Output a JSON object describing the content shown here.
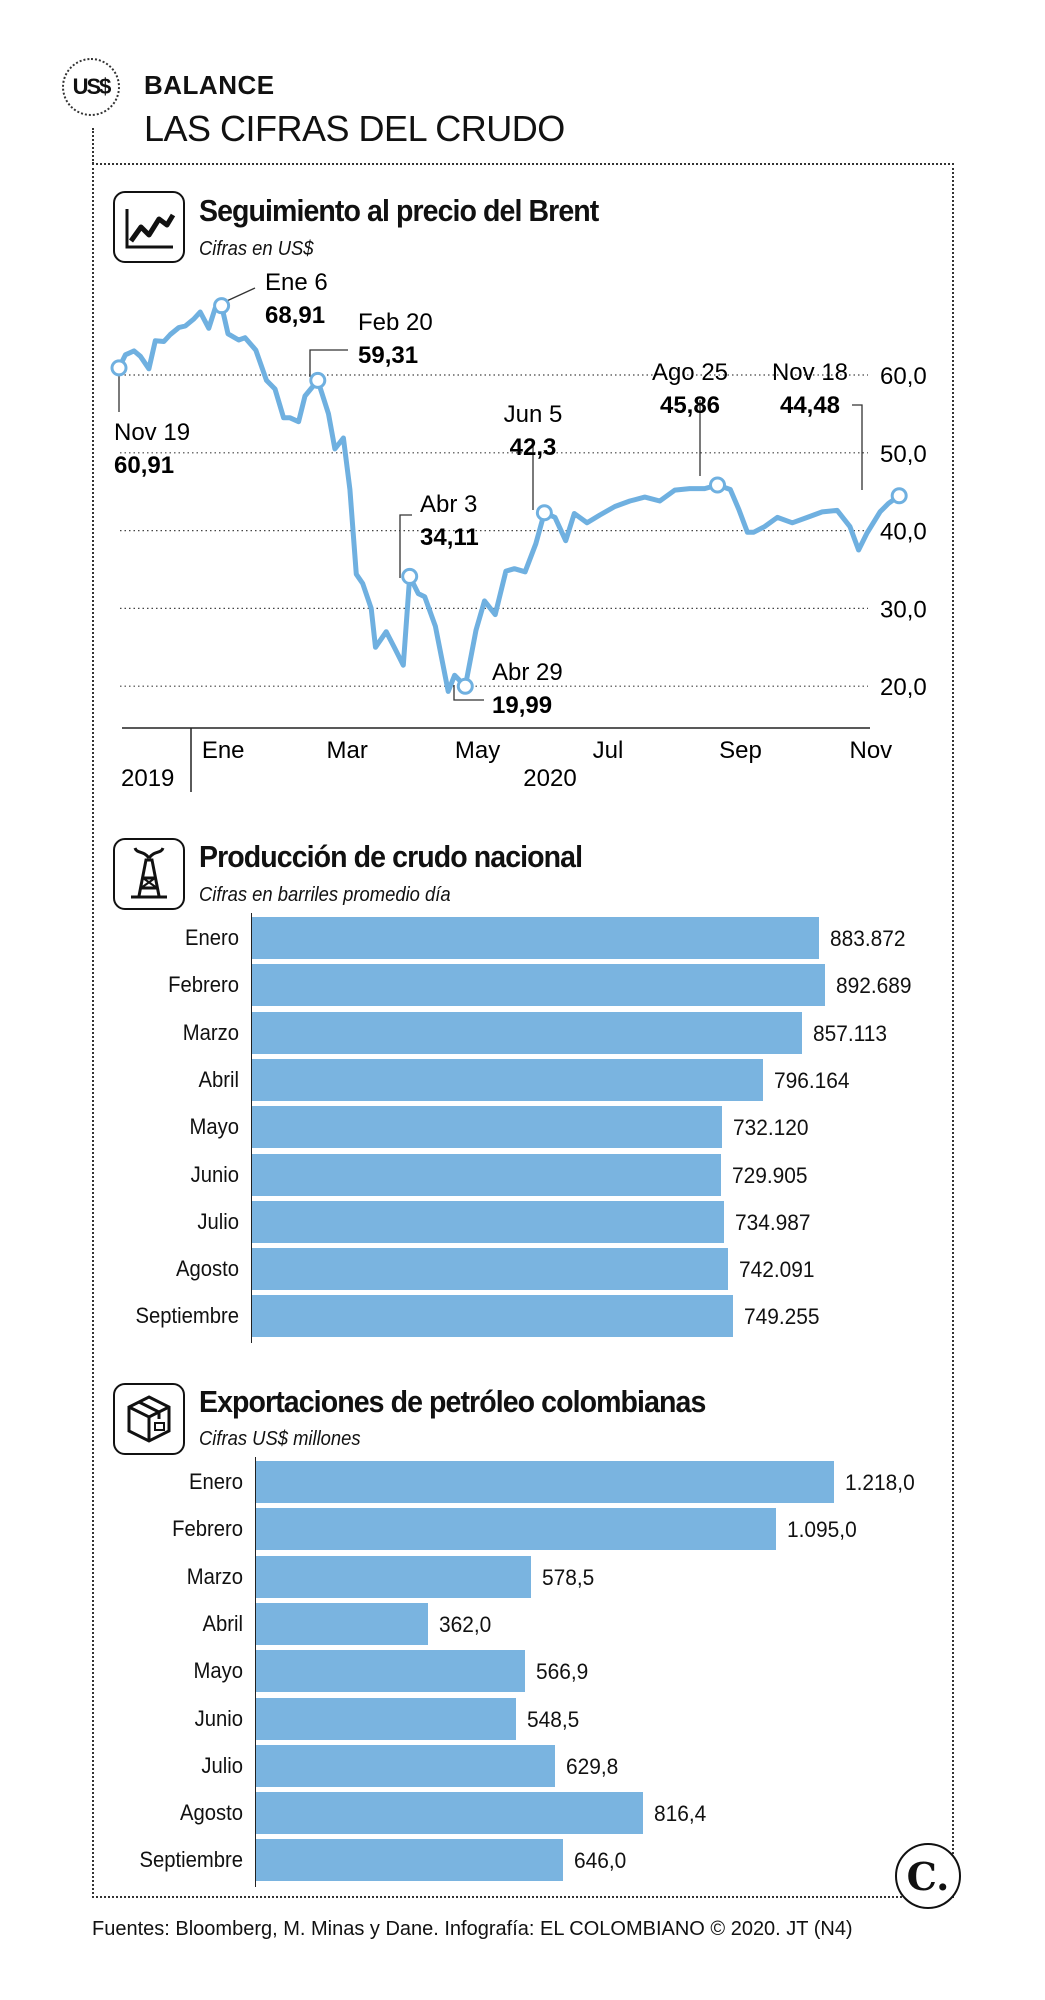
{
  "header": {
    "badge": "US$",
    "kicker": "BALANCE",
    "title": "LAS CIFRAS DEL CRUDO"
  },
  "icons": {
    "line_chart": "line-chart-icon",
    "oil_rig": "oil-derrick-icon",
    "export_box": "export-box-icon"
  },
  "colors": {
    "accent": "#7ab4e0",
    "line": "#6fb0e0"
  },
  "chart_data": [
    {
      "type": "line",
      "title": "Seguimiento al precio del Brent",
      "subtitle": "Cifras en US$",
      "y_ticks": [
        "60,0",
        "50,0",
        "40,0",
        "30,0",
        "20,0"
      ],
      "y_tick_values": [
        60,
        50,
        40,
        30,
        20
      ],
      "ylim": [
        17,
        72
      ],
      "x_ticks": [
        "Ene",
        "Mar",
        "May",
        "Jul",
        "Sep",
        "Nov"
      ],
      "x_years": [
        "2019",
        "2020"
      ],
      "grid": true,
      "series": [
        {
          "x": [
            "2019-11-19",
            "2019-11-22",
            "2019-11-26",
            "2019-11-29",
            "2019-12-03",
            "2019-12-06",
            "2019-12-10",
            "2019-12-13",
            "2019-12-17",
            "2019-12-20",
            "2019-12-24",
            "2019-12-27",
            "2019-12-31",
            "2020-01-03",
            "2020-01-06",
            "2020-01-09",
            "2020-01-14",
            "2020-01-17",
            "2020-01-22",
            "2020-01-27",
            "2020-01-31",
            "2020-02-04",
            "2020-02-07",
            "2020-02-11",
            "2020-02-14",
            "2020-02-20",
            "2020-02-25",
            "2020-02-28",
            "2020-03-03",
            "2020-03-06",
            "2020-03-09",
            "2020-03-12",
            "2020-03-16",
            "2020-03-18",
            "2020-03-23",
            "2020-03-27",
            "2020-03-31",
            "2020-04-03",
            "2020-04-07",
            "2020-04-10",
            "2020-04-15",
            "2020-04-21",
            "2020-04-24",
            "2020-04-29",
            "2020-05-04",
            "2020-05-08",
            "2020-05-13",
            "2020-05-18",
            "2020-05-22",
            "2020-05-27",
            "2020-06-01",
            "2020-06-05",
            "2020-06-10",
            "2020-06-15",
            "2020-06-19",
            "2020-06-25",
            "2020-07-01",
            "2020-07-08",
            "2020-07-15",
            "2020-07-22",
            "2020-07-29",
            "2020-08-05",
            "2020-08-12",
            "2020-08-19",
            "2020-08-25",
            "2020-08-31",
            "2020-09-04",
            "2020-09-08",
            "2020-09-11",
            "2020-09-16",
            "2020-09-22",
            "2020-09-29",
            "2020-10-06",
            "2020-10-13",
            "2020-10-20",
            "2020-10-26",
            "2020-10-30",
            "2020-11-03",
            "2020-11-09",
            "2020-11-13",
            "2020-11-18"
          ],
          "values": [
            60.91,
            62.6,
            63.1,
            62.4,
            60.8,
            64.4,
            64.3,
            65.2,
            66.1,
            66.3,
            67.2,
            68.1,
            66.0,
            68.6,
            68.91,
            65.3,
            64.5,
            64.8,
            63.2,
            59.3,
            58.2,
            54.5,
            54.5,
            54.0,
            57.3,
            59.31,
            55.0,
            50.5,
            51.9,
            45.3,
            34.4,
            33.2,
            30.0,
            25.0,
            27.0,
            24.9,
            22.7,
            34.11,
            31.9,
            31.5,
            27.7,
            19.33,
            21.4,
            19.99,
            27.2,
            30.97,
            29.2,
            34.8,
            35.1,
            34.7,
            38.3,
            42.3,
            41.7,
            38.7,
            42.2,
            41.0,
            42.0,
            43.1,
            43.8,
            44.3,
            43.8,
            45.2,
            45.4,
            45.4,
            45.86,
            45.28,
            42.7,
            39.8,
            39.8,
            40.5,
            41.7,
            41.0,
            41.7,
            42.4,
            42.6,
            40.5,
            37.5,
            39.7,
            42.4,
            43.5,
            44.48
          ]
        }
      ],
      "annotations": [
        {
          "date": "Nov 19",
          "value": "60,91"
        },
        {
          "date": "Ene 6",
          "value": "68,91"
        },
        {
          "date": "Feb 20",
          "value": "59,31"
        },
        {
          "date": "Abr 3",
          "value": "34,11"
        },
        {
          "date": "Abr 29",
          "value": "19,99"
        },
        {
          "date": "Jun 5",
          "value": "42,3"
        },
        {
          "date": "Ago 25",
          "value": "45,86"
        },
        {
          "date": "Nov 18",
          "value": "44,48"
        }
      ]
    },
    {
      "type": "bar",
      "title": "Producción de crudo nacional",
      "subtitle": "Cifras en barriles promedio día",
      "categories": [
        "Enero",
        "Febrero",
        "Marzo",
        "Abril",
        "Mayo",
        "Junio",
        "Julio",
        "Agosto",
        "Septiembre"
      ],
      "values": [
        883872,
        892689,
        857113,
        796164,
        732120,
        729905,
        734987,
        742091,
        749255
      ],
      "labels": [
        "883.872",
        "892.689",
        "857.113",
        "796.164",
        "732.120",
        "729.905",
        "734.987",
        "742.091",
        "749.255"
      ]
    },
    {
      "type": "bar",
      "title": "Exportaciones de petróleo colombianas",
      "subtitle": "Cifras US$ millones",
      "categories": [
        "Enero",
        "Febrero",
        "Marzo",
        "Abril",
        "Mayo",
        "Junio",
        "Julio",
        "Agosto",
        "Septiembre"
      ],
      "values": [
        1218.0,
        1095.0,
        578.5,
        362.0,
        566.9,
        548.5,
        629.8,
        816.4,
        646.0
      ],
      "labels": [
        "1.218,0",
        "1.095,0",
        "578,5",
        "362,0",
        "566,9",
        "548,5",
        "629,8",
        "816,4",
        "646,0"
      ]
    }
  ],
  "footer": {
    "source": "Fuentes: Bloomberg, M. Minas y Dane. Infografía: EL COLOMBIANO © 2020. JT (N4)",
    "logo": "C."
  }
}
